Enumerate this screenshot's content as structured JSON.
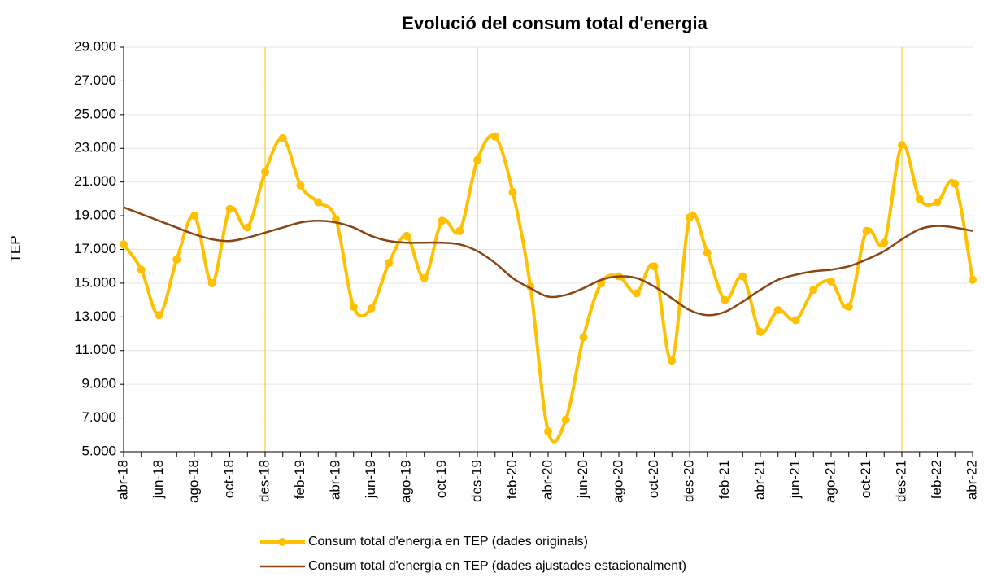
{
  "chart_data": {
    "type": "line",
    "title": "Evolució del consum total d'energia",
    "y_label": "TEP",
    "categories": [
      "abr-18",
      null,
      "jun-18",
      null,
      "ago-18",
      null,
      "oct-18",
      null,
      "des-18",
      null,
      "feb-19",
      null,
      "abr-19",
      null,
      "jun-19",
      null,
      "ago-19",
      null,
      "oct-19",
      null,
      "des-19",
      null,
      "feb-20",
      null,
      "abr-20",
      null,
      "jun-20",
      null,
      "ago-20",
      null,
      "oct-20",
      null,
      "des-20",
      null,
      "feb-21",
      null,
      "abr-21",
      null,
      "jun-21",
      null,
      "ago-21",
      null,
      "oct-21",
      null,
      "des-21",
      null,
      "feb-22",
      null,
      "abr-22"
    ],
    "series": [
      {
        "name": "Consum total d'energia en TEP (dades originals)",
        "color": "#ffc000",
        "markers": true,
        "values": [
          17300,
          15800,
          13100,
          16400,
          19000,
          15000,
          19400,
          18300,
          21600,
          23600,
          20800,
          19800,
          18800,
          13600,
          13500,
          16200,
          17800,
          15300,
          18700,
          18100,
          22300,
          23700,
          20400,
          14800,
          6200,
          6900,
          11800,
          15000,
          15400,
          14400,
          16000,
          10400,
          18900,
          16800,
          14000,
          15400,
          12100,
          13400,
          12800,
          14600,
          15100,
          13600,
          18100,
          17400,
          23200,
          20000,
          19800,
          20900,
          15200
        ]
      },
      {
        "name": "Consum total d'energia en TEP (dades ajustades estacionalment)",
        "color": "#8b4513",
        "markers": false,
        "values": [
          19500,
          19100,
          18700,
          18300,
          17900,
          17600,
          17500,
          17700,
          18000,
          18300,
          18600,
          18700,
          18600,
          18300,
          17800,
          17500,
          17400,
          17400,
          17400,
          17300,
          16900,
          16200,
          15300,
          14700,
          14200,
          14300,
          14700,
          15200,
          15400,
          15300,
          14800,
          14100,
          13400,
          13100,
          13300,
          13900,
          14600,
          15200,
          15500,
          15700,
          15800,
          16000,
          16400,
          16900,
          17600,
          18200,
          18400,
          18300,
          18100
        ]
      }
    ],
    "vlines": [
      "des-18",
      "des-19",
      "des-20",
      "des-21"
    ],
    "vline_color": "#ffc000",
    "ylim": [
      5000,
      29000
    ],
    "yticks": [
      {
        "value": 5000,
        "label": "5.000"
      },
      {
        "value": 7000,
        "label": "7.000"
      },
      {
        "value": 9000,
        "label": "9.000"
      },
      {
        "value": 11000,
        "label": "11.000"
      },
      {
        "value": 13000,
        "label": "13.000"
      },
      {
        "value": 15000,
        "label": "15.000"
      },
      {
        "value": 17000,
        "label": "17.000"
      },
      {
        "value": 19000,
        "label": "19.000"
      },
      {
        "value": 21000,
        "label": "21.000"
      },
      {
        "value": 23000,
        "label": "23.000"
      },
      {
        "value": 25000,
        "label": "25.000"
      },
      {
        "value": 27000,
        "label": "27.000"
      },
      {
        "value": 29000,
        "label": "29.000"
      }
    ],
    "grid": true
  }
}
